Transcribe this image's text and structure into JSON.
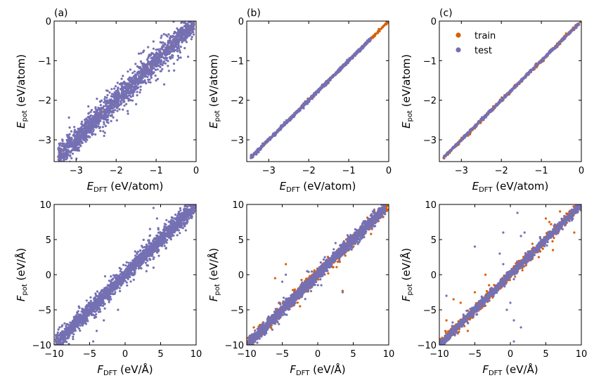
{
  "colors": {
    "train": "#d95f02",
    "test": "#7570b3"
  },
  "chart_data": [
    {
      "type": "scatter",
      "panel_label": "(a)",
      "xlabel": {
        "main": "E",
        "sub": "DFT",
        "unit": " (eV/atom)"
      },
      "ylabel": {
        "main": "E",
        "sub": "pot",
        "unit": " (eV/atom)"
      },
      "xlim": [
        -3.55,
        0
      ],
      "ylim": [
        -3.55,
        0
      ],
      "xticks": [
        -3,
        -2,
        -1,
        0
      ],
      "yticks": [
        -3,
        -2,
        -1,
        0
      ],
      "xtick_labels": [
        "−3",
        "−2",
        "−1",
        "0"
      ],
      "ytick_labels": [
        "−3",
        "−2",
        "−1",
        "0"
      ],
      "series": [
        {
          "key": "train",
          "color": "#d95f02",
          "x_range": [
            -3.45,
            -0.05
          ],
          "spread": 0.03,
          "count": 150,
          "outliers": []
        },
        {
          "key": "test",
          "color": "#7570b3",
          "x_range": [
            -3.45,
            -0.05
          ],
          "spread": 0.16,
          "count": 1800,
          "outliers": [
            [
              -0.2,
              -0.9
            ],
            [
              -0.3,
              -0.05
            ],
            [
              -1.0,
              -1.5
            ],
            [
              -0.8,
              -1.6
            ],
            [
              -1.5,
              -2.1
            ],
            [
              -2.3,
              -2.9
            ],
            [
              -0.15,
              -0.35
            ],
            [
              -0.55,
              -1.25
            ]
          ]
        }
      ]
    },
    {
      "type": "scatter",
      "panel_label": "(b)",
      "xlabel": {
        "main": "E",
        "sub": "DFT",
        "unit": " (eV/atom)"
      },
      "ylabel": {
        "main": "E",
        "sub": "pot",
        "unit": " (eV/atom)"
      },
      "xlim": [
        -3.55,
        0
      ],
      "ylim": [
        -3.55,
        0
      ],
      "xticks": [
        -3,
        -2,
        -1,
        0
      ],
      "yticks": [
        -3,
        -2,
        -1,
        0
      ],
      "xtick_labels": [
        "−3",
        "−2",
        "−1",
        "0"
      ],
      "ytick_labels": [
        "−3",
        "−2",
        "−1",
        "0"
      ],
      "series": [
        {
          "key": "train",
          "color": "#d95f02",
          "x_range": [
            -3.45,
            -0.02
          ],
          "spread": 0.015,
          "count": 400,
          "outliers": []
        },
        {
          "key": "test",
          "color": "#7570b3",
          "x_range": [
            -3.45,
            -0.45
          ],
          "spread": 0.02,
          "count": 900,
          "outliers": []
        }
      ]
    },
    {
      "type": "scatter",
      "panel_label": "(c)",
      "xlabel": {
        "main": "E",
        "sub": "DFT",
        "unit": " (eV/atom)"
      },
      "ylabel": {
        "main": "E",
        "sub": "pot",
        "unit": " (eV/atom)"
      },
      "xlim": [
        -3.55,
        0
      ],
      "ylim": [
        -3.55,
        0
      ],
      "xticks": [
        -3,
        -2,
        -1,
        0
      ],
      "yticks": [
        -3,
        -2,
        -1,
        0
      ],
      "xtick_labels": [
        "−3",
        "−2",
        "−1",
        "0"
      ],
      "ytick_labels": [
        "−3",
        "−2",
        "−1",
        "0"
      ],
      "legend": {
        "placement": "top-left",
        "entries": [
          {
            "key": "train",
            "label": "train"
          },
          {
            "key": "test",
            "label": "test"
          }
        ]
      },
      "series": [
        {
          "key": "train",
          "color": "#d95f02",
          "x_range": [
            -3.45,
            -0.02
          ],
          "spread": 0.02,
          "count": 500,
          "outliers": []
        },
        {
          "key": "test",
          "color": "#7570b3",
          "x_range": [
            -3.45,
            -0.05
          ],
          "spread": 0.015,
          "count": 700,
          "outliers": []
        }
      ]
    },
    {
      "type": "scatter",
      "panel_label": "",
      "xlabel": {
        "main": "F",
        "sub": "DFT",
        "unit": " (eV/Å)"
      },
      "ylabel": {
        "main": "F",
        "sub": "pot",
        "unit": " (eV/Å)"
      },
      "xlim": [
        -10,
        10
      ],
      "ylim": [
        -10,
        10
      ],
      "xticks": [
        -10,
        -5,
        0,
        5,
        10
      ],
      "yticks": [
        -10,
        -5,
        0,
        5,
        10
      ],
      "xtick_labels": [
        "−10",
        "−5",
        "0",
        "5",
        "10"
      ],
      "ytick_labels": [
        "−10",
        "−5",
        "0",
        "5",
        "10"
      ],
      "series": [
        {
          "key": "train",
          "color": "#d95f02",
          "x_range": [
            -9.8,
            9.8
          ],
          "spread": 0.1,
          "count": 100,
          "outliers": []
        },
        {
          "key": "test",
          "color": "#7570b3",
          "x_range": [
            -9.8,
            9.8
          ],
          "spread": 0.6,
          "count": 2200,
          "outliers": [
            [
              4,
              9.5
            ],
            [
              4.5,
              8
            ],
            [
              3.5,
              6.5
            ],
            [
              -3,
              -6.5
            ],
            [
              -4,
              -8
            ],
            [
              -4.5,
              -9.5
            ],
            [
              -2,
              -3.5
            ],
            [
              8.5,
              10
            ],
            [
              -9.5,
              -8.5
            ],
            [
              3,
              0.5
            ],
            [
              4,
              1
            ],
            [
              -5.5,
              -7
            ],
            [
              -1,
              -5
            ]
          ]
        }
      ]
    },
    {
      "type": "scatter",
      "panel_label": "",
      "xlabel": {
        "main": "F",
        "sub": "DFT",
        "unit": " (eV/Å)"
      },
      "ylabel": {
        "main": "F",
        "sub": "pot",
        "unit": " (eV/Å)"
      },
      "xlim": [
        -10,
        10
      ],
      "ylim": [
        -10,
        10
      ],
      "xticks": [
        -10,
        -5,
        0,
        5,
        10
      ],
      "yticks": [
        -10,
        -5,
        0,
        5,
        10
      ],
      "xtick_labels": [
        "−10",
        "−5",
        "0",
        "5",
        "10"
      ],
      "ytick_labels": [
        "−10",
        "−5",
        "0",
        "5",
        "10"
      ],
      "series": [
        {
          "key": "train",
          "color": "#d95f02",
          "x_range": [
            -10,
            9.9
          ],
          "spread": 0.4,
          "count": 900,
          "outliers": [
            [
              -4.5,
              1.5
            ],
            [
              -6,
              -0.5
            ],
            [
              3.5,
              -2.3
            ],
            [
              4,
              5
            ],
            [
              -2.5,
              -4.5
            ],
            [
              7.5,
              5.8
            ],
            [
              -9.8,
              -9
            ],
            [
              -9,
              -7.5
            ]
          ]
        },
        {
          "key": "test",
          "color": "#7570b3",
          "x_range": [
            -9.8,
            9.5
          ],
          "spread": 0.45,
          "count": 1700,
          "outliers": [
            [
              -5,
              -1
            ],
            [
              -1.5,
              0.5
            ],
            [
              1,
              2.5
            ],
            [
              3.5,
              -2.5
            ],
            [
              -4.5,
              0
            ],
            [
              2.5,
              4.5
            ],
            [
              -7,
              -6.5
            ],
            [
              0.5,
              -1.5
            ]
          ]
        }
      ]
    },
    {
      "type": "scatter",
      "panel_label": "",
      "xlabel": {
        "main": "F",
        "sub": "DFT",
        "unit": " (eV/Å)"
      },
      "ylabel": {
        "main": "F",
        "sub": "pot",
        "unit": " (eV/Å)"
      },
      "xlim": [
        -10,
        10
      ],
      "ylim": [
        -10,
        10
      ],
      "xticks": [
        -10,
        -5,
        0,
        5,
        10
      ],
      "yticks": [
        -10,
        -5,
        0,
        5,
        10
      ],
      "xtick_labels": [
        "−10",
        "−5",
        "0",
        "5",
        "10"
      ],
      "ytick_labels": [
        "−10",
        "−5",
        "0",
        "5",
        "10"
      ],
      "series": [
        {
          "key": "train",
          "color": "#d95f02",
          "x_range": [
            -10,
            10
          ],
          "spread": 0.35,
          "count": 900,
          "outliers": [
            [
              -7,
              -4
            ],
            [
              -5,
              -2.5
            ],
            [
              -3.5,
              0
            ],
            [
              -8,
              -3.5
            ],
            [
              5.5,
              7.5
            ],
            [
              6,
              3.5
            ],
            [
              7,
              9
            ],
            [
              -6,
              -8
            ],
            [
              4,
              2.5
            ],
            [
              9,
              6
            ],
            [
              -3,
              -1.5
            ],
            [
              -9,
              -6.5
            ],
            [
              5,
              8
            ]
          ]
        },
        {
          "key": "test",
          "color": "#7570b3",
          "x_range": [
            -10,
            10
          ],
          "spread": 0.3,
          "count": 1400,
          "outliers": [
            [
              -5,
              4
            ],
            [
              -1,
              6
            ],
            [
              1,
              8.8
            ],
            [
              0.5,
              -9.5
            ],
            [
              1.5,
              -7.5
            ],
            [
              2,
              6
            ],
            [
              -1.5,
              3
            ],
            [
              0,
              -4
            ],
            [
              -0.5,
              -5
            ],
            [
              1.5,
              5.5
            ],
            [
              -9,
              -3
            ],
            [
              0.5,
              -6.5
            ],
            [
              -1,
              1.5
            ]
          ]
        }
      ]
    }
  ]
}
